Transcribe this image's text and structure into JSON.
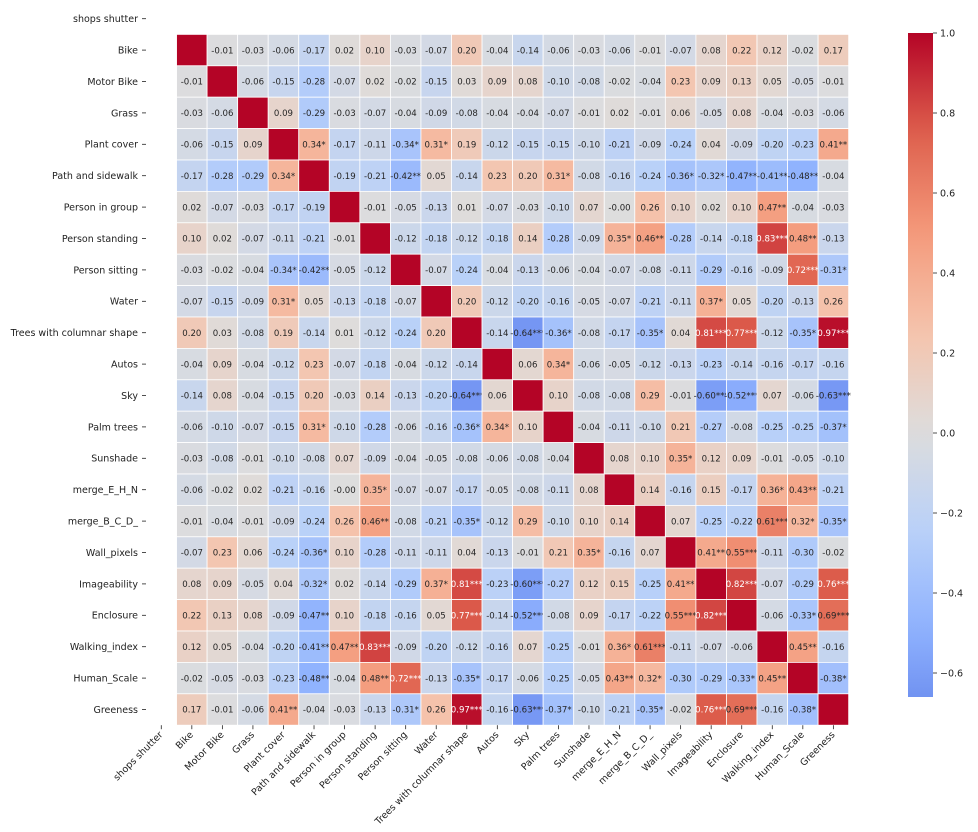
{
  "chart_data": {
    "type": "heatmap",
    "title": "",
    "xlabel": "",
    "ylabel": "",
    "labels": [
      "shops shutter",
      "Bike",
      "Motor Bike",
      "Grass",
      "Plant cover",
      "Path and sidewalk",
      "Person in group",
      "Person standing",
      "Person sitting",
      "Water",
      "Trees with columnar shape",
      "Autos",
      "Sky",
      "Palm trees",
      "Sunshade",
      "merge_E_H_N",
      "merge_B_C_D_",
      "Wall_pixels",
      "Imageability",
      "Enclosure",
      "Walking_index",
      "Human_Scale",
      "Greeness"
    ],
    "matrix": [
      [
        null,
        null,
        null,
        null,
        null,
        null,
        null,
        null,
        null,
        null,
        null,
        null,
        null,
        null,
        null,
        null,
        null,
        null,
        null,
        null,
        null,
        null,
        null
      ],
      [
        null,
        1,
        -0.01,
        -0.03,
        -0.06,
        -0.17,
        0.02,
        0.1,
        -0.03,
        -0.07,
        0.2,
        -0.04,
        -0.14,
        -0.06,
        -0.03,
        -0.06,
        -0.01,
        -0.07,
        0.08,
        0.22,
        0.12,
        -0.02,
        0.17
      ],
      [
        null,
        -0.01,
        1,
        -0.06,
        -0.15,
        -0.28,
        -0.07,
        0.02,
        -0.02,
        -0.15,
        0.03,
        0.09,
        0.08,
        -0.1,
        -0.08,
        -0.02,
        -0.04,
        0.23,
        0.09,
        0.13,
        0.05,
        -0.05,
        -0.01
      ],
      [
        null,
        -0.03,
        -0.06,
        1,
        0.09,
        -0.29,
        -0.03,
        -0.07,
        -0.04,
        -0.09,
        -0.08,
        -0.04,
        -0.04,
        -0.07,
        -0.01,
        0.02,
        -0.01,
        0.06,
        -0.05,
        0.08,
        -0.04,
        -0.03,
        -0.06
      ],
      [
        null,
        -0.06,
        -0.15,
        0.09,
        1,
        0.34,
        -0.17,
        -0.11,
        -0.34,
        0.31,
        0.19,
        -0.12,
        -0.15,
        -0.15,
        -0.1,
        -0.21,
        -0.09,
        -0.24,
        0.04,
        -0.09,
        -0.2,
        -0.23,
        0.41
      ],
      [
        null,
        -0.17,
        -0.28,
        -0.29,
        0.34,
        1,
        -0.19,
        -0.21,
        -0.42,
        0.05,
        -0.14,
        0.23,
        0.2,
        0.31,
        -0.08,
        -0.16,
        -0.24,
        -0.36,
        -0.32,
        -0.47,
        -0.41,
        -0.48,
        -0.04
      ],
      [
        null,
        0.02,
        -0.07,
        -0.03,
        -0.17,
        -0.19,
        1,
        -0.01,
        -0.05,
        -0.13,
        0.01,
        -0.07,
        -0.03,
        -0.1,
        0.07,
        -0.0,
        0.26,
        0.1,
        0.02,
        0.1,
        0.47,
        -0.04,
        -0.03
      ],
      [
        null,
        0.1,
        0.02,
        -0.07,
        -0.11,
        -0.21,
        -0.01,
        1,
        -0.12,
        -0.18,
        -0.12,
        -0.18,
        0.14,
        -0.28,
        -0.09,
        0.35,
        0.46,
        -0.28,
        -0.14,
        -0.18,
        0.83,
        0.48,
        -0.13
      ],
      [
        null,
        -0.03,
        -0.02,
        -0.04,
        -0.34,
        -0.42,
        -0.05,
        -0.12,
        1,
        -0.07,
        -0.24,
        -0.04,
        -0.13,
        -0.06,
        -0.04,
        -0.07,
        -0.08,
        -0.11,
        -0.29,
        -0.16,
        -0.09,
        0.72,
        -0.31
      ],
      [
        null,
        -0.07,
        -0.15,
        -0.09,
        0.31,
        0.05,
        -0.13,
        -0.18,
        -0.07,
        1,
        0.2,
        -0.12,
        -0.2,
        -0.16,
        -0.05,
        -0.07,
        -0.21,
        -0.11,
        0.37,
        0.05,
        -0.2,
        -0.13,
        0.26
      ],
      [
        null,
        0.2,
        0.03,
        -0.08,
        0.19,
        -0.14,
        0.01,
        -0.12,
        -0.24,
        0.2,
        1,
        -0.14,
        -0.64,
        -0.36,
        -0.08,
        -0.17,
        -0.35,
        0.04,
        0.81,
        0.77,
        -0.12,
        -0.35,
        0.97
      ],
      [
        null,
        -0.04,
        0.09,
        -0.04,
        -0.12,
        0.23,
        -0.07,
        -0.18,
        -0.04,
        -0.12,
        -0.14,
        1,
        0.06,
        0.34,
        -0.06,
        -0.05,
        -0.12,
        -0.13,
        -0.23,
        -0.14,
        -0.16,
        -0.17,
        -0.16
      ],
      [
        null,
        -0.14,
        0.08,
        -0.04,
        -0.15,
        0.2,
        -0.03,
        0.14,
        -0.13,
        -0.2,
        -0.64,
        0.06,
        1,
        0.1,
        -0.08,
        -0.08,
        0.29,
        -0.01,
        -0.6,
        -0.52,
        0.07,
        -0.06,
        -0.63
      ],
      [
        null,
        -0.06,
        -0.1,
        -0.07,
        -0.15,
        0.31,
        -0.1,
        -0.28,
        -0.06,
        -0.16,
        -0.36,
        0.34,
        0.1,
        1,
        -0.04,
        -0.11,
        -0.1,
        0.21,
        -0.27,
        -0.08,
        -0.25,
        -0.25,
        -0.37
      ],
      [
        null,
        -0.03,
        -0.08,
        -0.01,
        -0.1,
        -0.08,
        0.07,
        -0.09,
        -0.04,
        -0.05,
        -0.08,
        -0.06,
        -0.08,
        -0.04,
        1,
        0.08,
        0.1,
        0.35,
        0.12,
        0.09,
        -0.01,
        -0.05,
        -0.1
      ],
      [
        null,
        -0.06,
        -0.02,
        0.02,
        -0.21,
        -0.16,
        -0.0,
        0.35,
        -0.07,
        -0.07,
        -0.17,
        -0.05,
        -0.08,
        -0.11,
        0.08,
        1,
        0.14,
        -0.16,
        0.15,
        -0.17,
        0.36,
        0.43,
        -0.21
      ],
      [
        null,
        -0.01,
        -0.04,
        -0.01,
        -0.09,
        -0.24,
        0.26,
        0.46,
        -0.08,
        -0.21,
        -0.35,
        -0.12,
        0.29,
        -0.1,
        0.1,
        0.14,
        1,
        0.07,
        -0.25,
        -0.22,
        0.61,
        0.32,
        -0.35
      ],
      [
        null,
        -0.07,
        0.23,
        0.06,
        -0.24,
        -0.36,
        0.1,
        -0.28,
        -0.11,
        -0.11,
        0.04,
        -0.13,
        -0.01,
        0.21,
        0.35,
        -0.16,
        0.07,
        1,
        0.41,
        0.55,
        -0.11,
        -0.3,
        -0.02
      ],
      [
        null,
        0.08,
        0.09,
        -0.05,
        0.04,
        -0.32,
        0.02,
        -0.14,
        -0.29,
        0.37,
        0.81,
        -0.23,
        -0.6,
        -0.27,
        0.12,
        0.15,
        -0.25,
        0.41,
        1,
        0.82,
        -0.07,
        -0.29,
        0.76
      ],
      [
        null,
        0.22,
        0.13,
        0.08,
        -0.09,
        -0.47,
        0.1,
        -0.18,
        -0.16,
        0.05,
        0.77,
        -0.14,
        -0.52,
        -0.08,
        0.09,
        -0.17,
        -0.22,
        0.55,
        0.82,
        1,
        -0.06,
        -0.33,
        0.69
      ],
      [
        null,
        0.12,
        0.05,
        -0.04,
        -0.2,
        -0.41,
        0.47,
        0.83,
        -0.09,
        -0.2,
        -0.12,
        -0.16,
        0.07,
        -0.25,
        -0.01,
        0.36,
        0.61,
        -0.11,
        -0.07,
        -0.06,
        1,
        0.45,
        -0.16
      ],
      [
        null,
        -0.02,
        -0.05,
        -0.03,
        -0.23,
        -0.48,
        -0.04,
        0.48,
        0.72,
        -0.13,
        -0.35,
        -0.17,
        -0.06,
        -0.25,
        -0.05,
        0.43,
        0.32,
        -0.3,
        -0.29,
        -0.33,
        0.45,
        1,
        -0.38
      ],
      [
        null,
        0.17,
        -0.01,
        -0.06,
        0.41,
        -0.04,
        -0.03,
        -0.13,
        -0.31,
        0.26,
        0.97,
        -0.16,
        -0.63,
        -0.37,
        -0.1,
        -0.21,
        -0.35,
        -0.02,
        0.76,
        0.69,
        -0.16,
        -0.38,
        1
      ]
    ],
    "annotations": [
      [
        "",
        "",
        "",
        "",
        "",
        "",
        "",
        "",
        "",
        "",
        "",
        "",
        "",
        "",
        "",
        "",
        "",
        "",
        "",
        "",
        "",
        "",
        ""
      ],
      [
        "",
        "",
        "-0.01",
        "-0.03",
        "-0.06",
        "-0.17",
        "0.02",
        "0.10",
        "-0.03",
        "-0.07",
        "0.20",
        "-0.04",
        "-0.14",
        "-0.06",
        "-0.03",
        "-0.06",
        "-0.01",
        "-0.07",
        "0.08",
        "0.22",
        "0.12",
        "-0.02",
        "0.17"
      ],
      [
        "",
        "-0.01",
        "",
        "-0.06",
        "-0.15",
        "-0.28",
        "-0.07",
        "0.02",
        "-0.02",
        "-0.15",
        "0.03",
        "0.09",
        "0.08",
        "-0.10",
        "-0.08",
        "-0.02",
        "-0.04",
        "0.23",
        "0.09",
        "0.13",
        "0.05",
        "-0.05",
        "-0.01"
      ],
      [
        "",
        "-0.03",
        "-0.06",
        "",
        "0.09",
        "-0.29",
        "-0.03",
        "-0.07",
        "-0.04",
        "-0.09",
        "-0.08",
        "-0.04",
        "-0.04",
        "-0.07",
        "-0.01",
        "0.02",
        "-0.01",
        "0.06",
        "-0.05",
        "0.08",
        "-0.04",
        "-0.03",
        "-0.06"
      ],
      [
        "",
        "-0.06",
        "-0.15",
        "0.09",
        "",
        "0.34*",
        "-0.17",
        "-0.11",
        "-0.34*",
        "0.31*",
        "0.19",
        "-0.12",
        "-0.15",
        "-0.15",
        "-0.10",
        "-0.21",
        "-0.09",
        "-0.24",
        "0.04",
        "-0.09",
        "-0.20",
        "-0.23",
        "0.41**"
      ],
      [
        "",
        "-0.17",
        "-0.28",
        "-0.29",
        "0.34*",
        "",
        "-0.19",
        "-0.21",
        "-0.42**",
        "0.05",
        "-0.14",
        "0.23",
        "0.20",
        "0.31*",
        "-0.08",
        "-0.16",
        "-0.24",
        "-0.36*",
        "-0.32*",
        "-0.47**",
        "-0.41**",
        "-0.48**",
        "-0.04"
      ],
      [
        "",
        "0.02",
        "-0.07",
        "-0.03",
        "-0.17",
        "-0.19",
        "",
        "-0.01",
        "-0.05",
        "-0.13",
        "0.01",
        "-0.07",
        "-0.03",
        "-0.10",
        "0.07",
        "-0.00",
        "0.26",
        "0.10",
        "0.02",
        "0.10",
        "0.47**",
        "-0.04",
        "-0.03"
      ],
      [
        "",
        "0.10",
        "0.02",
        "-0.07",
        "-0.11",
        "-0.21",
        "-0.01",
        "",
        "-0.12",
        "-0.18",
        "-0.12",
        "-0.18",
        "0.14",
        "-0.28",
        "-0.09",
        "0.35*",
        "0.46**",
        "-0.28",
        "-0.14",
        "-0.18",
        "0.83***",
        "0.48**",
        "-0.13"
      ],
      [
        "",
        "-0.03",
        "-0.02",
        "-0.04",
        "-0.34*",
        "-0.42**",
        "-0.05",
        "-0.12",
        "",
        "-0.07",
        "-0.24",
        "-0.04",
        "-0.13",
        "-0.06",
        "-0.04",
        "-0.07",
        "-0.08",
        "-0.11",
        "-0.29",
        "-0.16",
        "-0.09",
        "0.72***",
        "-0.31*"
      ],
      [
        "",
        "-0.07",
        "-0.15",
        "-0.09",
        "0.31*",
        "0.05",
        "-0.13",
        "-0.18",
        "-0.07",
        "",
        "0.20",
        "-0.12",
        "-0.20",
        "-0.16",
        "-0.05",
        "-0.07",
        "-0.21",
        "-0.11",
        "0.37*",
        "0.05",
        "-0.20",
        "-0.13",
        "0.26"
      ],
      [
        "",
        "0.20",
        "0.03",
        "-0.08",
        "0.19",
        "-0.14",
        "0.01",
        "-0.12",
        "-0.24",
        "0.20",
        "",
        "-0.14",
        "-0.64***",
        "-0.36*",
        "-0.08",
        "-0.17",
        "-0.35*",
        "0.04",
        "0.81***",
        "0.77***",
        "-0.12",
        "-0.35*",
        "0.97***"
      ],
      [
        "",
        "-0.04",
        "0.09",
        "-0.04",
        "-0.12",
        "0.23",
        "-0.07",
        "-0.18",
        "-0.04",
        "-0.12",
        "-0.14",
        "",
        "0.06",
        "0.34*",
        "-0.06",
        "-0.05",
        "-0.12",
        "-0.13",
        "-0.23",
        "-0.14",
        "-0.16",
        "-0.17",
        "-0.16"
      ],
      [
        "",
        "-0.14",
        "0.08",
        "-0.04",
        "-0.15",
        "0.20",
        "-0.03",
        "0.14",
        "-0.13",
        "-0.20",
        "-0.64***",
        "0.06",
        "",
        "0.10",
        "-0.08",
        "-0.08",
        "0.29",
        "-0.01",
        "-0.60***",
        "-0.52***",
        "0.07",
        "-0.06",
        "-0.63***"
      ],
      [
        "",
        "-0.06",
        "-0.10",
        "-0.07",
        "-0.15",
        "0.31*",
        "-0.10",
        "-0.28",
        "-0.06",
        "-0.16",
        "-0.36*",
        "0.34*",
        "0.10",
        "",
        "-0.04",
        "-0.11",
        "-0.10",
        "0.21",
        "-0.27",
        "-0.08",
        "-0.25",
        "-0.25",
        "-0.37*"
      ],
      [
        "",
        "-0.03",
        "-0.08",
        "-0.01",
        "-0.10",
        "-0.08",
        "0.07",
        "-0.09",
        "-0.04",
        "-0.05",
        "-0.08",
        "-0.06",
        "-0.08",
        "-0.04",
        "",
        "0.08",
        "0.10",
        "0.35*",
        "0.12",
        "0.09",
        "-0.01",
        "-0.05",
        "-0.10"
      ],
      [
        "",
        "-0.06",
        "-0.02",
        "0.02",
        "-0.21",
        "-0.16",
        "-0.00",
        "0.35*",
        "-0.07",
        "-0.07",
        "-0.17",
        "-0.05",
        "-0.08",
        "-0.11",
        "0.08",
        "",
        "0.14",
        "-0.16",
        "0.15",
        "-0.17",
        "0.36*",
        "0.43**",
        "-0.21"
      ],
      [
        "",
        "-0.01",
        "-0.04",
        "-0.01",
        "-0.09",
        "-0.24",
        "0.26",
        "0.46**",
        "-0.08",
        "-0.21",
        "-0.35*",
        "-0.12",
        "0.29",
        "-0.10",
        "0.10",
        "0.14",
        "",
        "0.07",
        "-0.25",
        "-0.22",
        "0.61***",
        "0.32*",
        "-0.35*"
      ],
      [
        "",
        "-0.07",
        "0.23",
        "0.06",
        "-0.24",
        "-0.36*",
        "0.10",
        "-0.28",
        "-0.11",
        "-0.11",
        "0.04",
        "-0.13",
        "-0.01",
        "0.21",
        "0.35*",
        "-0.16",
        "0.07",
        "",
        "0.41**",
        "0.55***",
        "-0.11",
        "-0.30",
        "-0.02"
      ],
      [
        "",
        "0.08",
        "0.09",
        "-0.05",
        "0.04",
        "-0.32*",
        "0.02",
        "-0.14",
        "-0.29",
        "0.37*",
        "0.81***",
        "-0.23",
        "-0.60***",
        "-0.27",
        "0.12",
        "0.15",
        "-0.25",
        "0.41**",
        "",
        "0.82***",
        "-0.07",
        "-0.29",
        "0.76***"
      ],
      [
        "",
        "0.22",
        "0.13",
        "0.08",
        "-0.09",
        "-0.47**",
        "0.10",
        "-0.18",
        "-0.16",
        "0.05",
        "0.77***",
        "-0.14",
        "-0.52***",
        "-0.08",
        "0.09",
        "-0.17",
        "-0.22",
        "0.55***",
        "0.82***",
        "",
        "-0.06",
        "-0.33*",
        "0.69***"
      ],
      [
        "",
        "0.12",
        "0.05",
        "-0.04",
        "-0.20",
        "-0.41**",
        "0.47**",
        "0.83***",
        "-0.09",
        "-0.20",
        "-0.12",
        "-0.16",
        "0.07",
        "-0.25",
        "-0.01",
        "0.36*",
        "0.61***",
        "-0.11",
        "-0.07",
        "-0.06",
        "",
        "0.45**",
        "-0.16"
      ],
      [
        "",
        "-0.02",
        "-0.05",
        "-0.03",
        "-0.23",
        "-0.48**",
        "-0.04",
        "0.48**",
        "0.72***",
        "-0.13",
        "-0.35*",
        "-0.17",
        "-0.06",
        "-0.25",
        "-0.05",
        "0.43**",
        "0.32*",
        "-0.30",
        "-0.29",
        "-0.33*",
        "0.45**",
        "",
        "-0.38*"
      ],
      [
        "",
        "0.17",
        "-0.01",
        "-0.06",
        "0.41**",
        "-0.04",
        "-0.03",
        "-0.13",
        "-0.31*",
        "0.26",
        "0.97***",
        "-0.16",
        "-0.63***",
        "-0.37*",
        "-0.10",
        "-0.21",
        "-0.35*",
        "-0.02",
        "0.76***",
        "0.69***",
        "-0.16",
        "-0.38*",
        ""
      ]
    ],
    "colormap": "coolwarm",
    "vmin": -0.66,
    "vmax": 1.0,
    "colorbar_ticks": [
      1.0,
      0.8,
      0.6,
      0.4,
      0.2,
      0.0,
      -0.2,
      -0.4,
      -0.6
    ],
    "colorbar_tick_labels": [
      "1.0",
      "0.8",
      "0.6",
      "0.4",
      "0.2",
      "0.0",
      "−0.2",
      "−0.4",
      "−0.6"
    ],
    "grid": true,
    "grid_color": "#ffffff",
    "missing_color": "#ffffff",
    "legend": "colorbar-right"
  }
}
